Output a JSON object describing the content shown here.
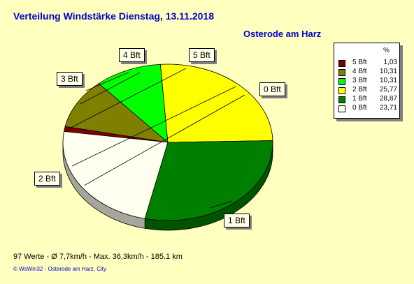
{
  "header": {
    "title": "Verteilung Windstärke  Dienstag, 13.11.2018",
    "location": "Osterode am Harz"
  },
  "legend": {
    "header": "%"
  },
  "footer": {
    "stats": "97 Werte   -   Ø 7,7km/h  -  Max. 36,3km/h   -   185.1 km",
    "copyright": "© WsWin32   -   Osterode am Harz, City"
  },
  "chart_data": {
    "type": "pie",
    "title": "Verteilung Windstärke  Dienstag, 13.11.2018",
    "subtitle": "Osterode am Harz",
    "legend_position": "top-right",
    "unit": "%",
    "slices": [
      {
        "label": "5 Bft",
        "value": 1.03,
        "value_label": "1,03",
        "color": "#800000"
      },
      {
        "label": "4 Bft",
        "value": 10.31,
        "value_label": "10,31",
        "color": "#808000"
      },
      {
        "label": "3 Bft",
        "value": 10.31,
        "value_label": "10,31",
        "color": "#00FF00"
      },
      {
        "label": "2 Bft",
        "value": 25.77,
        "value_label": "25,77",
        "color": "#FFFF00"
      },
      {
        "label": "1 Bft",
        "value": 28.87,
        "value_label": "28,87",
        "color": "#008000"
      },
      {
        "label": "0 Bft",
        "value": 23.71,
        "value_label": "23,71",
        "color": "#FFFFF0"
      }
    ]
  }
}
